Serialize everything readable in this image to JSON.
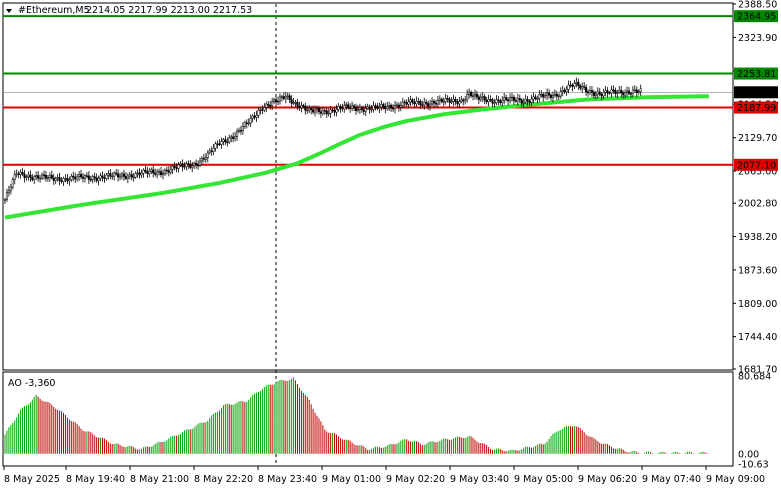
{
  "header": {
    "symbol": "#Ethereum,M5",
    "ohlc": "2214.05 2217.99 2213.00 2217.53"
  },
  "colors": {
    "bull": "#00a000",
    "bear": "#c00000",
    "ma": "#33e633",
    "support_line": "#e00000",
    "resistance_line": "#008800",
    "price_tag": "#000000"
  },
  "chart_data": [
    {
      "type": "candlestick",
      "ylim": [
        1681.7,
        2388.5
      ],
      "y_ticks": [
        "2388.50",
        "2323.90",
        "2259.10",
        "2194.50",
        "2129.70",
        "2065.00",
        "2002.80",
        "1938.20",
        "1873.60",
        "1809.00",
        "1744.40",
        "1681.70"
      ],
      "x_ticks": [
        "8 May 2025",
        "8 May 19:40",
        "8 May 21:00",
        "8 May 22:20",
        "8 May 23:40",
        "9 May 01:00",
        "9 May 02:20",
        "9 May 03:40",
        "9 May 05:00",
        "9 May 06:20",
        "9 May 07:40",
        "9 May 09:00"
      ],
      "horizontal_levels": [
        {
          "label": "2364.95",
          "value": 2364.95,
          "kind": "resistance"
        },
        {
          "label": "2253.81",
          "value": 2253.81,
          "kind": "resistance"
        },
        {
          "label": "2187.99",
          "value": 2187.99,
          "kind": "support"
        },
        {
          "label": "2077.10",
          "value": 2077.1,
          "kind": "support"
        }
      ],
      "current_price": {
        "label": "2217.53",
        "value": 2217.53
      },
      "moving_average_anchors": [
        {
          "x": 0,
          "y": 1975
        },
        {
          "x": 40,
          "y": 2000
        },
        {
          "x": 80,
          "y": 2022
        },
        {
          "x": 110,
          "y": 2042
        },
        {
          "x": 134,
          "y": 2062
        },
        {
          "x": 150,
          "y": 2080
        },
        {
          "x": 162,
          "y": 2100
        },
        {
          "x": 172,
          "y": 2118
        },
        {
          "x": 182,
          "y": 2135
        },
        {
          "x": 194,
          "y": 2150
        },
        {
          "x": 206,
          "y": 2162
        },
        {
          "x": 225,
          "y": 2175
        },
        {
          "x": 244,
          "y": 2184
        },
        {
          "x": 270,
          "y": 2194
        },
        {
          "x": 300,
          "y": 2204
        },
        {
          "x": 330,
          "y": 2208
        },
        {
          "x": 362,
          "y": 2210
        }
      ],
      "price_anchors": [
        {
          "x": 0,
          "y": 2010
        },
        {
          "x": 6,
          "y": 2060
        },
        {
          "x": 14,
          "y": 2055
        },
        {
          "x": 24,
          "y": 2050
        },
        {
          "x": 40,
          "y": 2052
        },
        {
          "x": 60,
          "y": 2056
        },
        {
          "x": 80,
          "y": 2064
        },
        {
          "x": 98,
          "y": 2080
        },
        {
          "x": 104,
          "y": 2095
        },
        {
          "x": 110,
          "y": 2120
        },
        {
          "x": 118,
          "y": 2135
        },
        {
          "x": 124,
          "y": 2155
        },
        {
          "x": 132,
          "y": 2190
        },
        {
          "x": 140,
          "y": 2200
        },
        {
          "x": 144,
          "y": 2210
        },
        {
          "x": 150,
          "y": 2195
        },
        {
          "x": 156,
          "y": 2180
        },
        {
          "x": 166,
          "y": 2182
        },
        {
          "x": 176,
          "y": 2188
        },
        {
          "x": 190,
          "y": 2186
        },
        {
          "x": 206,
          "y": 2196
        },
        {
          "x": 220,
          "y": 2198
        },
        {
          "x": 234,
          "y": 2202
        },
        {
          "x": 238,
          "y": 2215
        },
        {
          "x": 242,
          "y": 2205
        },
        {
          "x": 252,
          "y": 2202
        },
        {
          "x": 266,
          "y": 2202
        },
        {
          "x": 274,
          "y": 2208
        },
        {
          "x": 282,
          "y": 2212
        },
        {
          "x": 288,
          "y": 2226
        },
        {
          "x": 292,
          "y": 2232
        },
        {
          "x": 298,
          "y": 2222
        },
        {
          "x": 306,
          "y": 2214
        },
        {
          "x": 314,
          "y": 2218
        },
        {
          "x": 322,
          "y": 2220
        },
        {
          "x": 326,
          "y": 2217.5
        }
      ],
      "awesome_oscillator": {
        "label": "AO -3,360",
        "ylim": [
          0,
          80.684
        ],
        "y_ticks": [
          "80.684",
          "0.00",
          "-10.63"
        ],
        "anchors": [
          {
            "x": 0,
            "y": 20
          },
          {
            "x": 8,
            "y": 45
          },
          {
            "x": 16,
            "y": 60
          },
          {
            "x": 26,
            "y": 48
          },
          {
            "x": 40,
            "y": 25
          },
          {
            "x": 56,
            "y": 10
          },
          {
            "x": 70,
            "y": 5
          },
          {
            "x": 80,
            "y": 12
          },
          {
            "x": 94,
            "y": 25
          },
          {
            "x": 104,
            "y": 35
          },
          {
            "x": 112,
            "y": 50
          },
          {
            "x": 124,
            "y": 55
          },
          {
            "x": 132,
            "y": 68
          },
          {
            "x": 140,
            "y": 75
          },
          {
            "x": 148,
            "y": 78
          },
          {
            "x": 156,
            "y": 55
          },
          {
            "x": 164,
            "y": 25
          },
          {
            "x": 174,
            "y": 15
          },
          {
            "x": 186,
            "y": 5
          },
          {
            "x": 196,
            "y": 8
          },
          {
            "x": 206,
            "y": 15
          },
          {
            "x": 214,
            "y": 10
          },
          {
            "x": 226,
            "y": 15
          },
          {
            "x": 238,
            "y": 18
          },
          {
            "x": 250,
            "y": 5
          },
          {
            "x": 260,
            "y": 3
          },
          {
            "x": 276,
            "y": 10
          },
          {
            "x": 284,
            "y": 25
          },
          {
            "x": 292,
            "y": 30
          },
          {
            "x": 302,
            "y": 15
          },
          {
            "x": 310,
            "y": 8
          },
          {
            "x": 318,
            "y": 3
          },
          {
            "x": 326,
            "y": 1
          }
        ]
      }
    }
  ]
}
